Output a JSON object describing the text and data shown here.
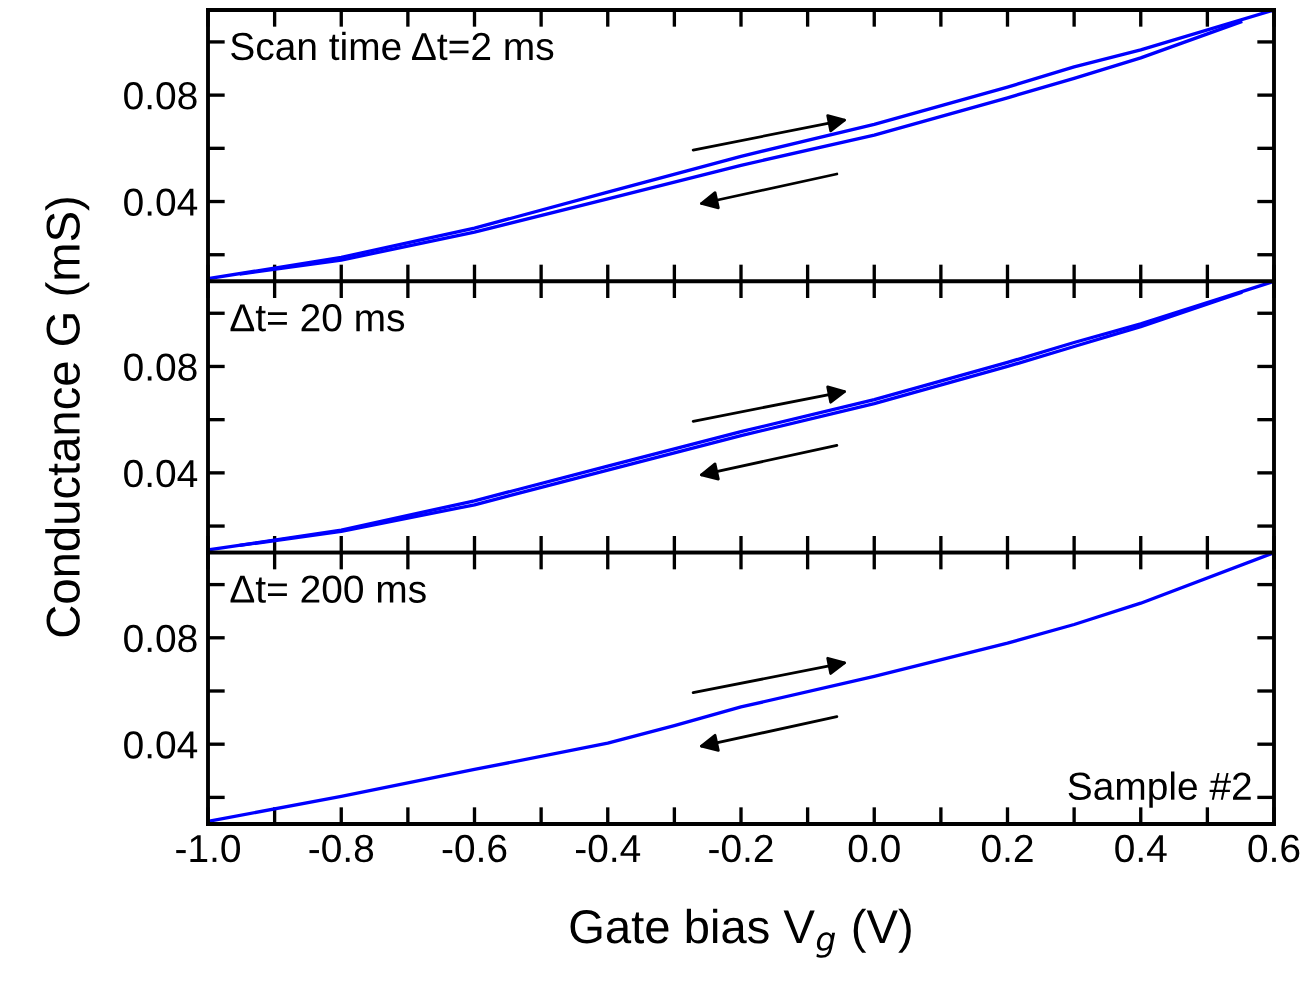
{
  "chart_data": [
    {
      "type": "line",
      "annotations": [
        "Scan time Δt=2 ms"
      ],
      "series": [
        {
          "color": "#0000ff",
          "x": [
            -1.0,
            -0.8,
            -0.6,
            -0.4,
            -0.2,
            0.0,
            0.2,
            0.3,
            0.4,
            0.6
          ],
          "values": [
            0.011,
            0.019,
            0.03,
            0.0435,
            0.057,
            0.069,
            0.083,
            0.0906,
            0.097,
            0.112
          ]
        },
        {
          "color": "#0000ff",
          "x": [
            -0.95,
            -0.8,
            -0.6,
            -0.4,
            -0.2,
            0.0,
            0.2,
            0.3,
            0.4,
            0.55
          ],
          "values": [
            0.0128,
            0.018,
            0.0285,
            0.041,
            0.0536,
            0.065,
            0.079,
            0.0863,
            0.094,
            0.1075
          ]
        }
      ],
      "xlim": [
        -1.0,
        0.6
      ],
      "ylim": [
        0.01,
        0.112
      ],
      "xticks": [
        {
          "value": -1.0,
          "label": null
        },
        {
          "value": -0.9,
          "label": null
        },
        {
          "value": -0.8,
          "label": null
        },
        {
          "value": -0.7,
          "label": null
        },
        {
          "value": -0.6,
          "label": null
        },
        {
          "value": -0.5,
          "label": null
        },
        {
          "value": -0.4,
          "label": null
        },
        {
          "value": -0.3,
          "label": null
        },
        {
          "value": -0.2,
          "label": null
        },
        {
          "value": -0.1,
          "label": null
        },
        {
          "value": 0.0,
          "label": null
        },
        {
          "value": 0.1,
          "label": null
        },
        {
          "value": 0.2,
          "label": null
        },
        {
          "value": 0.3,
          "label": null
        },
        {
          "value": 0.4,
          "label": null
        },
        {
          "value": 0.5,
          "label": null
        },
        {
          "value": 0.6,
          "label": null
        }
      ],
      "yticks": [
        {
          "value": 0.02,
          "label": null
        },
        {
          "value": 0.04,
          "label": "0.04"
        },
        {
          "value": 0.06,
          "label": null
        },
        {
          "value": 0.08,
          "label": "0.08"
        },
        {
          "value": 0.1,
          "label": null
        }
      ],
      "tick_labels": "y",
      "legend": false,
      "grid": false
    },
    {
      "type": "line",
      "annotations": [
        "Δt= 20 ms"
      ],
      "ylabel": "Conductance G (mS)",
      "series": [
        {
          "color": "#0000ff",
          "x": [
            -1.0,
            -0.8,
            -0.6,
            -0.4,
            -0.2,
            0.0,
            0.2,
            0.3,
            0.4,
            0.6
          ],
          "values": [
            0.011,
            0.0185,
            0.0295,
            0.0425,
            0.0555,
            0.0675,
            0.0815,
            0.089,
            0.096,
            0.112
          ]
        },
        {
          "color": "#0000ff",
          "x": [
            -0.95,
            -0.8,
            -0.6,
            -0.4,
            -0.2,
            0.0,
            0.2,
            0.3,
            0.4,
            0.55
          ],
          "values": [
            0.0128,
            0.018,
            0.028,
            0.041,
            0.054,
            0.066,
            0.08,
            0.0875,
            0.095,
            0.1077
          ]
        }
      ],
      "xlim": [
        -1.0,
        0.6
      ],
      "ylim": [
        0.01,
        0.112
      ],
      "xticks": [
        {
          "value": -1.0,
          "label": null
        },
        {
          "value": -0.9,
          "label": null
        },
        {
          "value": -0.8,
          "label": null
        },
        {
          "value": -0.7,
          "label": null
        },
        {
          "value": -0.6,
          "label": null
        },
        {
          "value": -0.5,
          "label": null
        },
        {
          "value": -0.4,
          "label": null
        },
        {
          "value": -0.3,
          "label": null
        },
        {
          "value": -0.2,
          "label": null
        },
        {
          "value": -0.1,
          "label": null
        },
        {
          "value": 0.0,
          "label": null
        },
        {
          "value": 0.1,
          "label": null
        },
        {
          "value": 0.2,
          "label": null
        },
        {
          "value": 0.3,
          "label": null
        },
        {
          "value": 0.4,
          "label": null
        },
        {
          "value": 0.5,
          "label": null
        },
        {
          "value": 0.6,
          "label": null
        }
      ],
      "yticks": [
        {
          "value": 0.02,
          "label": null
        },
        {
          "value": 0.04,
          "label": "0.04"
        },
        {
          "value": 0.06,
          "label": null
        },
        {
          "value": 0.08,
          "label": "0.08"
        },
        {
          "value": 0.1,
          "label": null
        }
      ],
      "tick_labels": "y",
      "legend": false,
      "grid": false
    },
    {
      "type": "line",
      "annotations": [
        "Δt= 200 ms",
        "Sample #2"
      ],
      "xlabel": "Gate bias V$_{g}$ (V)",
      "x": [
        -1.0,
        -0.8,
        -0.6,
        -0.4,
        -0.3,
        -0.2,
        0.0,
        0.2,
        0.3,
        0.4,
        0.6
      ],
      "series": [
        {
          "color": "#0000ff",
          "values": [
            0.011,
            0.0204,
            0.0305,
            0.0404,
            0.047,
            0.054,
            0.0655,
            0.078,
            0.085,
            0.093,
            0.112
          ]
        }
      ],
      "xlim": [
        -1.0,
        0.6
      ],
      "ylim": [
        0.01,
        0.112
      ],
      "xticks": [
        {
          "value": -1.0,
          "label": "-1.0"
        },
        {
          "value": -0.9,
          "label": null
        },
        {
          "value": -0.8,
          "label": "-0.8"
        },
        {
          "value": -0.7,
          "label": null
        },
        {
          "value": -0.6,
          "label": "-0.6"
        },
        {
          "value": -0.5,
          "label": null
        },
        {
          "value": -0.4,
          "label": "-0.4"
        },
        {
          "value": -0.3,
          "label": null
        },
        {
          "value": -0.2,
          "label": "-0.2"
        },
        {
          "value": -0.1,
          "label": null
        },
        {
          "value": 0.0,
          "label": "0.0"
        },
        {
          "value": 0.1,
          "label": null
        },
        {
          "value": 0.2,
          "label": "0.2"
        },
        {
          "value": 0.3,
          "label": null
        },
        {
          "value": 0.4,
          "label": "0.4"
        },
        {
          "value": 0.5,
          "label": null
        },
        {
          "value": 0.6,
          "label": "0.6"
        }
      ],
      "yticks": [
        {
          "value": 0.02,
          "label": null
        },
        {
          "value": 0.04,
          "label": "0.04"
        },
        {
          "value": 0.06,
          "label": null
        },
        {
          "value": 0.08,
          "label": "0.08"
        },
        {
          "value": 0.1,
          "label": null
        }
      ],
      "legend": false,
      "grid": false
    }
  ]
}
